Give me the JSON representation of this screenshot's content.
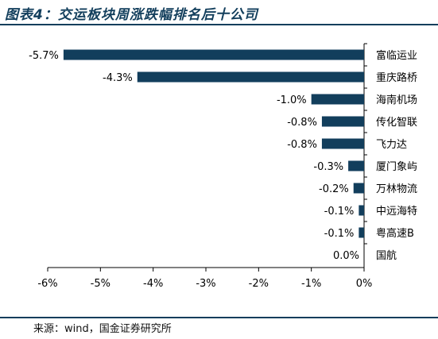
{
  "header": {
    "title": "图表4：交运板块周涨跌幅排名后十公司"
  },
  "footer": {
    "source": "来源：wind，国金证券研究所"
  },
  "colors": {
    "bar": "#123e5c",
    "rule": "#123e5c",
    "axis": "#000000"
  },
  "chart_data": {
    "type": "bar",
    "orientation": "horizontal",
    "categories": [
      "富临运业",
      "重庆路桥",
      "海南机场",
      "传化智联",
      "飞力达",
      "厦门象屿",
      "万林物流",
      "中远海特",
      "粤高速B",
      "国航"
    ],
    "values": [
      -5.7,
      -4.3,
      -1.0,
      -0.8,
      -0.8,
      -0.3,
      -0.2,
      -0.1,
      -0.1,
      0.0
    ],
    "data_labels": [
      "-5.7%",
      "-4.3%",
      "-1.0%",
      "-0.8%",
      "-0.8%",
      "-0.3%",
      "-0.2%",
      "-0.1%",
      "-0.1%",
      "0.0%"
    ],
    "x_ticks": [
      "-6%",
      "-5%",
      "-4%",
      "-3%",
      "-2%",
      "-1%",
      "0%"
    ],
    "xlim": [
      -6,
      0
    ],
    "grid": false,
    "legend": "none"
  }
}
